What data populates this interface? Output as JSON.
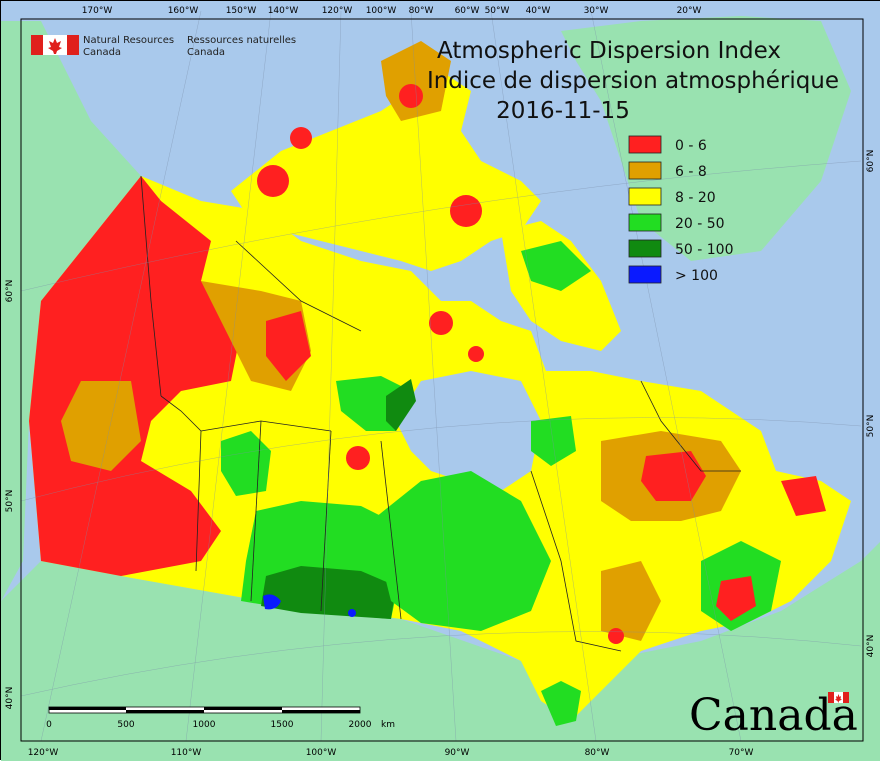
{
  "agency": {
    "english_line1": "Natural Resources",
    "english_line2": "Canada",
    "french_line1": "Ressources naturelles",
    "french_line2": "Canada"
  },
  "title": {
    "english": "Atmospheric Dispersion Index",
    "french": "Indice de dispersion atmosphérique",
    "date": "2016-11-15"
  },
  "legend": {
    "items": [
      {
        "label": "0 - 6",
        "color": "#ff2020"
      },
      {
        "label": "6 - 8",
        "color": "#e0a000"
      },
      {
        "label": "8 - 20",
        "color": "#ffff00"
      },
      {
        "label": "20 - 50",
        "color": "#22dd22"
      },
      {
        "label": "50 - 100",
        "color": "#108a10"
      },
      {
        "label": "> 100",
        "color": "#0a1aff"
      }
    ]
  },
  "top_ticks": [
    "170°W",
    "160°W",
    "150°W",
    "140°W",
    "120°W",
    "100°W",
    "80°W",
    "60°W",
    "50°W",
    "40°W",
    "30°W",
    "20°W"
  ],
  "bottom_ticks": [
    "120°W",
    "110°W",
    "100°W",
    "90°W",
    "80°W",
    "70°W"
  ],
  "left_ticks": [
    "60°N",
    "50°N",
    "40°N"
  ],
  "right_ticks": [
    "60°N",
    "50°N",
    "40°N"
  ],
  "scale_bar": {
    "labels": [
      "0",
      "500",
      "1000",
      "1500",
      "2000"
    ],
    "unit": "km"
  },
  "wordmark": "Canada",
  "colors": {
    "water": "#a9c9ec",
    "neighbour_land": "#99e2b0",
    "low": "#ff2020",
    "moderate": "#e0a000",
    "fair": "#ffff00",
    "good": "#22dd22",
    "very_good": "#108a10",
    "excellent": "#0a1aff"
  }
}
